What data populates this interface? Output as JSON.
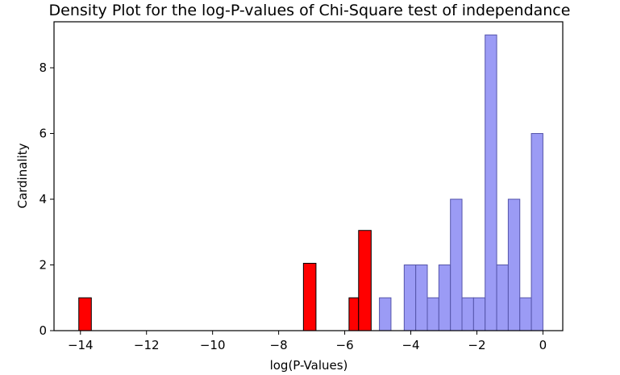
{
  "chart_data": {
    "type": "bar",
    "title": "Density Plot for the log-P-values of Chi-Square test of independance",
    "xlabel": "log(P-Values)",
    "ylabel": "Cardinality",
    "xlim": [
      -14.8,
      0.6
    ],
    "ylim": [
      0,
      9.4
    ],
    "xticks": [
      -14,
      -12,
      -10,
      -8,
      -6,
      -4,
      -2,
      0
    ],
    "xtick_labels": [
      "−14",
      "−12",
      "−10",
      "−8",
      "−6",
      "−4",
      "−2",
      "0"
    ],
    "yticks": [
      0,
      2,
      4,
      6,
      8
    ],
    "ytick_labels": [
      "0",
      "2",
      "4",
      "6",
      "8"
    ],
    "grid": false,
    "series": [
      {
        "color": "#ff0000",
        "edge": "#000000",
        "bins": [
          {
            "x0": -14.05,
            "x1": -13.67,
            "value": 1
          },
          {
            "x0": -7.25,
            "x1": -6.87,
            "value": 2.05
          },
          {
            "x0": -5.87,
            "x1": -5.58,
            "value": 1
          },
          {
            "x0": -5.58,
            "x1": -5.2,
            "value": 3.05
          }
        ]
      },
      {
        "color": "#9b9bf5",
        "edge": "#5555aa",
        "bins": [
          {
            "x0": -4.95,
            "x1": -4.6,
            "value": 1
          },
          {
            "x0": -4.2,
            "x1": -3.85,
            "value": 2
          },
          {
            "x0": -3.85,
            "x1": -3.5,
            "value": 2
          },
          {
            "x0": -3.5,
            "x1": -3.15,
            "value": 1
          },
          {
            "x0": -3.15,
            "x1": -2.8,
            "value": 2
          },
          {
            "x0": -2.8,
            "x1": -2.45,
            "value": 4
          },
          {
            "x0": -2.45,
            "x1": -2.1,
            "value": 1
          },
          {
            "x0": -2.1,
            "x1": -1.75,
            "value": 1
          },
          {
            "x0": -1.75,
            "x1": -1.4,
            "value": 9
          },
          {
            "x0": -1.4,
            "x1": -1.05,
            "value": 2
          },
          {
            "x0": -1.05,
            "x1": -0.7,
            "value": 4
          },
          {
            "x0": -0.7,
            "x1": -0.35,
            "value": 1
          },
          {
            "x0": -0.35,
            "x1": 0.0,
            "value": 6
          }
        ]
      }
    ]
  }
}
